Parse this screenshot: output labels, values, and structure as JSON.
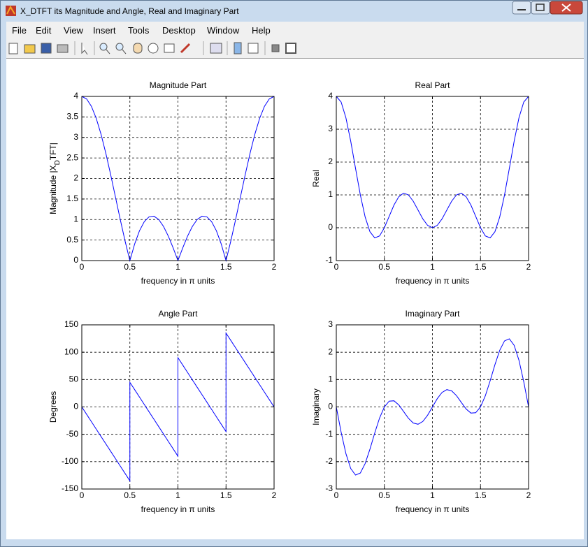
{
  "window": {
    "title": "X_DTFT its Magnitude and Angle, Real and Imaginary Part",
    "menu": [
      "File",
      "Edit",
      "View",
      "Insert",
      "Tools",
      "Desktop",
      "Window",
      "Help"
    ]
  },
  "chart_data": [
    {
      "type": "line",
      "title": "Magnitude Part",
      "xlabel": "frequency in π units",
      "ylabel": [
        "Magnitude  |X",
        "D",
        "TFT|"
      ],
      "color": "#0000ff",
      "grid": true,
      "xlim": [
        0,
        2
      ],
      "xticks": [
        0,
        0.5,
        1,
        1.5,
        2
      ],
      "ylim": [
        0,
        4
      ],
      "yticks": [
        0,
        0.5,
        1,
        1.5,
        2,
        2.5,
        3,
        3.5,
        4
      ],
      "x": [
        0,
        0.05,
        0.1,
        0.15,
        0.2,
        0.25,
        0.3,
        0.35,
        0.4,
        0.45,
        0.5,
        0.55,
        0.6,
        0.65,
        0.7,
        0.75,
        0.8,
        0.85,
        0.9,
        0.95,
        1,
        1.05,
        1.1,
        1.15,
        1.2,
        1.25,
        1.3,
        1.35,
        1.4,
        1.45,
        1.5,
        1.55,
        1.6,
        1.65,
        1.7,
        1.75,
        1.8,
        1.85,
        1.9,
        1.95,
        2
      ],
      "values": [
        4,
        3.938,
        3.758,
        3.466,
        3.078,
        2.613,
        2.095,
        1.548,
        1,
        0.476,
        0,
        0.406,
        0.727,
        0.949,
        1.067,
        1.082,
        1,
        0.832,
        0.595,
        0.31,
        0,
        0.31,
        0.595,
        0.832,
        1,
        1.082,
        1.067,
        0.949,
        0.727,
        0.406,
        0,
        0.476,
        1,
        1.548,
        2.095,
        2.613,
        3.078,
        3.466,
        3.758,
        3.938,
        4
      ]
    },
    {
      "type": "line",
      "title": "Real Part",
      "xlabel": "frequency in π units",
      "ylabel": "Real",
      "color": "#0000ff",
      "grid": true,
      "xlim": [
        0,
        2
      ],
      "xticks": [
        0,
        0.5,
        1,
        1.5,
        2
      ],
      "ylim": [
        -1,
        4
      ],
      "yticks": [
        -1,
        0,
        1,
        2,
        3,
        4
      ],
      "x": [
        0,
        0.05,
        0.1,
        0.15,
        0.2,
        0.25,
        0.3,
        0.35,
        0.4,
        0.45,
        0.5,
        0.55,
        0.6,
        0.65,
        0.7,
        0.75,
        0.8,
        0.85,
        0.9,
        0.95,
        1,
        1.05,
        1.1,
        1.15,
        1.2,
        1.25,
        1.3,
        1.35,
        1.4,
        1.45,
        1.5,
        1.55,
        1.6,
        1.65,
        1.7,
        1.75,
        1.8,
        1.85,
        1.9,
        1.95,
        2
      ],
      "values": [
        4,
        3.829,
        3.348,
        2.636,
        1.809,
        1,
        0.328,
        -0.122,
        -0.309,
        -0.249,
        0,
        0.346,
        0.691,
        0.946,
        1.054,
        1,
        0.809,
        0.54,
        0.27,
        0.072,
        0,
        0.072,
        0.27,
        0.54,
        0.809,
        1,
        1.054,
        0.946,
        0.691,
        0.346,
        0,
        -0.249,
        -0.309,
        -0.122,
        0.328,
        1,
        1.809,
        2.636,
        3.348,
        3.829,
        4
      ]
    },
    {
      "type": "line",
      "title": "Angle Part",
      "xlabel": "frequency in π units",
      "ylabel": "Degrees",
      "color": "#0000ff",
      "grid": true,
      "xlim": [
        0,
        2
      ],
      "xticks": [
        0,
        0.5,
        1,
        1.5,
        2
      ],
      "ylim": [
        -150,
        150
      ],
      "yticks": [
        -150,
        -100,
        -50,
        0,
        50,
        100,
        150
      ],
      "x": [
        0,
        0.05,
        0.1,
        0.15,
        0.2,
        0.25,
        0.3,
        0.35,
        0.4,
        0.45,
        0.5,
        0.5,
        0.55,
        0.6,
        0.65,
        0.7,
        0.75,
        0.8,
        0.85,
        0.9,
        0.95,
        1,
        1,
        1.05,
        1.1,
        1.15,
        1.2,
        1.25,
        1.3,
        1.35,
        1.4,
        1.45,
        1.5,
        1.5,
        1.55,
        1.6,
        1.65,
        1.7,
        1.75,
        1.8,
        1.85,
        1.9,
        1.95,
        2
      ],
      "values": [
        0,
        -13.5,
        -27,
        -40.5,
        -54,
        -67.5,
        -81,
        -94.5,
        -108,
        -121.5,
        -135,
        45,
        31.5,
        18,
        4.5,
        -9,
        -22.5,
        -36,
        -49.5,
        -63,
        -76.5,
        -90,
        90,
        76.5,
        63,
        49.5,
        36,
        22.5,
        9,
        -4.5,
        -18,
        -31.5,
        -45,
        135,
        121.5,
        108,
        94.5,
        81,
        67.5,
        54,
        40.5,
        27,
        13.5,
        0
      ]
    },
    {
      "type": "line",
      "title": "Imaginary Part",
      "xlabel": "frequency in π units",
      "ylabel": "Imaginary",
      "color": "#0000ff",
      "grid": true,
      "xlim": [
        0,
        2
      ],
      "xticks": [
        0,
        0.5,
        1,
        1.5,
        2
      ],
      "ylim": [
        -3,
        3
      ],
      "yticks": [
        -3,
        -2,
        -1,
        0,
        1,
        2,
        3
      ],
      "x": [
        0,
        0.05,
        0.1,
        0.15,
        0.2,
        0.25,
        0.3,
        0.35,
        0.4,
        0.45,
        0.5,
        0.55,
        0.6,
        0.65,
        0.7,
        0.75,
        0.8,
        0.85,
        0.9,
        0.95,
        1,
        1.05,
        1.1,
        1.15,
        1.2,
        1.25,
        1.3,
        1.35,
        1.4,
        1.45,
        1.5,
        1.55,
        1.6,
        1.65,
        1.7,
        1.75,
        1.8,
        1.85,
        1.9,
        1.95,
        2
      ],
      "values": [
        0,
        -0.919,
        -1.706,
        -2.251,
        -2.49,
        -2.414,
        -2.069,
        -1.543,
        -0.951,
        -0.406,
        0,
        0.212,
        0.225,
        0.074,
        -0.167,
        -0.414,
        -0.588,
        -0.633,
        -0.53,
        -0.301,
        0,
        0.301,
        0.53,
        0.633,
        0.588,
        0.414,
        0.167,
        -0.074,
        -0.225,
        -0.212,
        0,
        0.406,
        0.951,
        1.543,
        2.069,
        2.414,
        2.49,
        2.251,
        1.706,
        0.919,
        0
      ]
    }
  ]
}
